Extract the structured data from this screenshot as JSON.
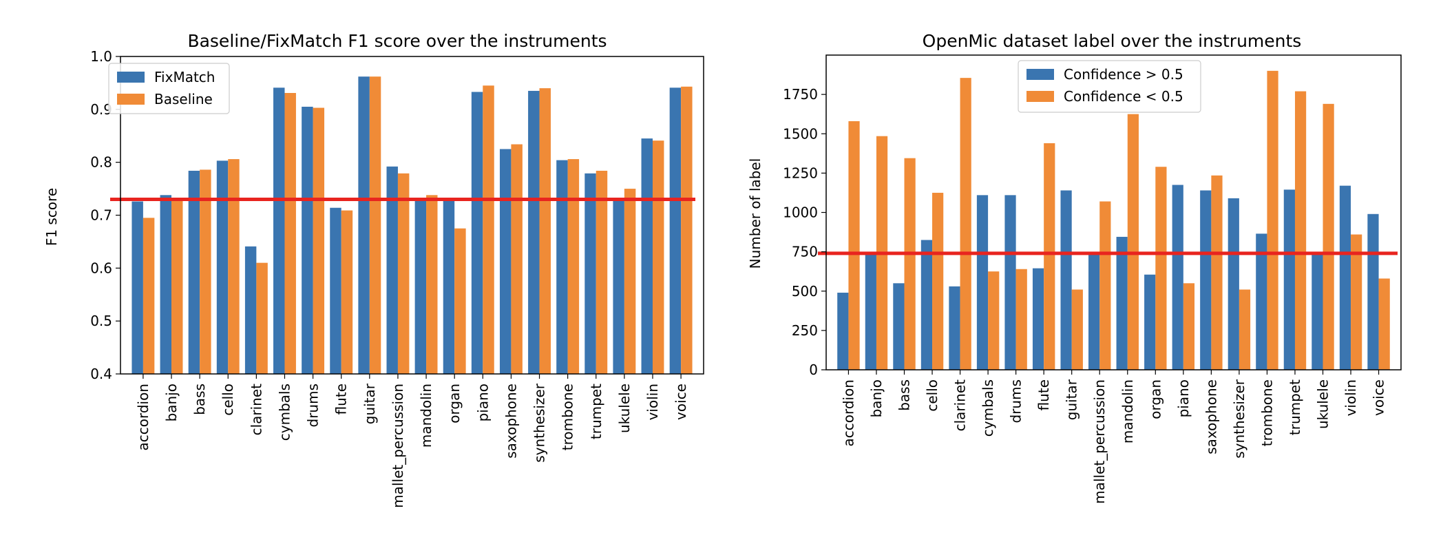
{
  "chart_data": [
    {
      "type": "bar",
      "title": "Baseline/FixMatch F1 score over the instruments",
      "xlabel": "",
      "ylabel": "F1 score",
      "ylim": [
        0.4,
        1.0
      ],
      "yticks": [
        0.4,
        0.5,
        0.6,
        0.7,
        0.8,
        0.9,
        1.0
      ],
      "legend_position": "top-left",
      "reference_line": 0.73,
      "reference_color": "#e8241f",
      "categories": [
        "accordion",
        "banjo",
        "bass",
        "cello",
        "clarinet",
        "cymbals",
        "drums",
        "flute",
        "guitar",
        "mallet_percussion",
        "mandolin",
        "organ",
        "piano",
        "saxophone",
        "synthesizer",
        "trombone",
        "trumpet",
        "ukulele",
        "violin",
        "voice"
      ],
      "series": [
        {
          "name": "FixMatch",
          "color": "#3a75b0",
          "values": [
            0.726,
            0.738,
            0.784,
            0.803,
            0.641,
            0.941,
            0.905,
            0.714,
            0.962,
            0.792,
            0.731,
            0.73,
            0.933,
            0.825,
            0.935,
            0.804,
            0.779,
            0.731,
            0.845,
            0.941
          ]
        },
        {
          "name": "Baseline",
          "color": "#f08b37",
          "values": [
            0.695,
            0.733,
            0.786,
            0.806,
            0.61,
            0.931,
            0.903,
            0.709,
            0.962,
            0.779,
            0.738,
            0.675,
            0.945,
            0.834,
            0.94,
            0.806,
            0.784,
            0.75,
            0.841,
            0.943
          ]
        }
      ]
    },
    {
      "type": "bar",
      "title": "OpenMic dataset label over the instruments",
      "xlabel": "",
      "ylabel": "Number of label",
      "ylim": [
        0,
        2000
      ],
      "yticks": [
        0,
        250,
        500,
        750,
        1000,
        1250,
        1500,
        1750
      ],
      "legend_position": "top-center",
      "reference_line": 740,
      "reference_color": "#e8241f",
      "categories": [
        "accordion",
        "banjo",
        "bass",
        "cello",
        "clarinet",
        "cymbals",
        "drums",
        "flute",
        "guitar",
        "mallet_percussion",
        "mandolin",
        "organ",
        "piano",
        "saxophone",
        "synthesizer",
        "trombone",
        "trumpet",
        "ukulele",
        "violin",
        "voice"
      ],
      "series": [
        {
          "name": "Confidence > 0.5",
          "color": "#3a75b0",
          "values": [
            490,
            740,
            550,
            825,
            530,
            1110,
            1110,
            645,
            1140,
            740,
            845,
            605,
            1175,
            1140,
            1090,
            865,
            1145,
            740,
            1170,
            990
          ]
        },
        {
          "name": "Confidence < 0.5",
          "color": "#f08b37",
          "values": [
            1580,
            1485,
            1345,
            1125,
            1855,
            625,
            640,
            1440,
            510,
            1070,
            1625,
            1290,
            550,
            1235,
            510,
            1900,
            1770,
            1690,
            860,
            580
          ]
        }
      ]
    }
  ]
}
